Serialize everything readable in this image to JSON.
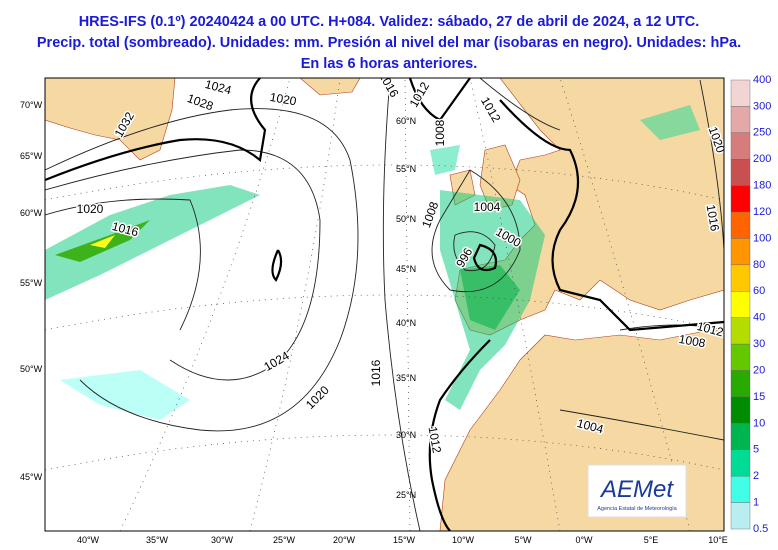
{
  "header": {
    "lines": [
      "HRES-IFS (0.1º) 20240424 a 00 UTC. H+084. Validez: sábado, 27 de abril de 2024, a 12 UTC.",
      "Precip. total (sombreado). Unidades: mm. Presión al nivel del mar (isobaras en negro). Unidades: hPa.",
      "En las 6 horas anteriores."
    ]
  },
  "colorbar": {
    "labels": [
      "400",
      "300",
      "250",
      "200",
      "180",
      "120",
      "100",
      "80",
      "60",
      "40",
      "30",
      "20",
      "15",
      "10",
      "5",
      "2",
      "1",
      "0.5"
    ],
    "colors": [
      "#f2d4d4",
      "#e4a8a8",
      "#d67c7c",
      "#c85050",
      "#ff0000",
      "#ff6400",
      "#ff9600",
      "#ffc800",
      "#ffff00",
      "#b4dc00",
      "#64c800",
      "#28aa00",
      "#008c00",
      "#00b450",
      "#00dc96",
      "#40ffe6",
      "#b8eef0"
    ]
  },
  "axes": {
    "left": [
      "70°W",
      "65°W",
      "60°W",
      "55°W",
      "50°W",
      "45°W"
    ],
    "bottom": [
      "40°W",
      "35°W",
      "30°W",
      "25°W",
      "20°W",
      "15°W",
      "10°W",
      "5°W",
      "0°W",
      "5°E",
      "10°E"
    ],
    "inner": [
      "60°N",
      "55°N",
      "50°N",
      "45°N",
      "40°N",
      "35°N",
      "30°N",
      "25°N"
    ]
  },
  "isobars": [
    "1024",
    "1028",
    "1032",
    "1020",
    "1016",
    "1012",
    "1012",
    "1008",
    "1020",
    "1016",
    "1020",
    "1016",
    "1004",
    "1000",
    "1008",
    "996",
    "1024",
    "1020",
    "1016",
    "1012",
    "1004",
    "1012",
    "1008"
  ],
  "logo": {
    "name": "AEMet",
    "subtitle": "Agencia Estatal de Meteorología"
  }
}
